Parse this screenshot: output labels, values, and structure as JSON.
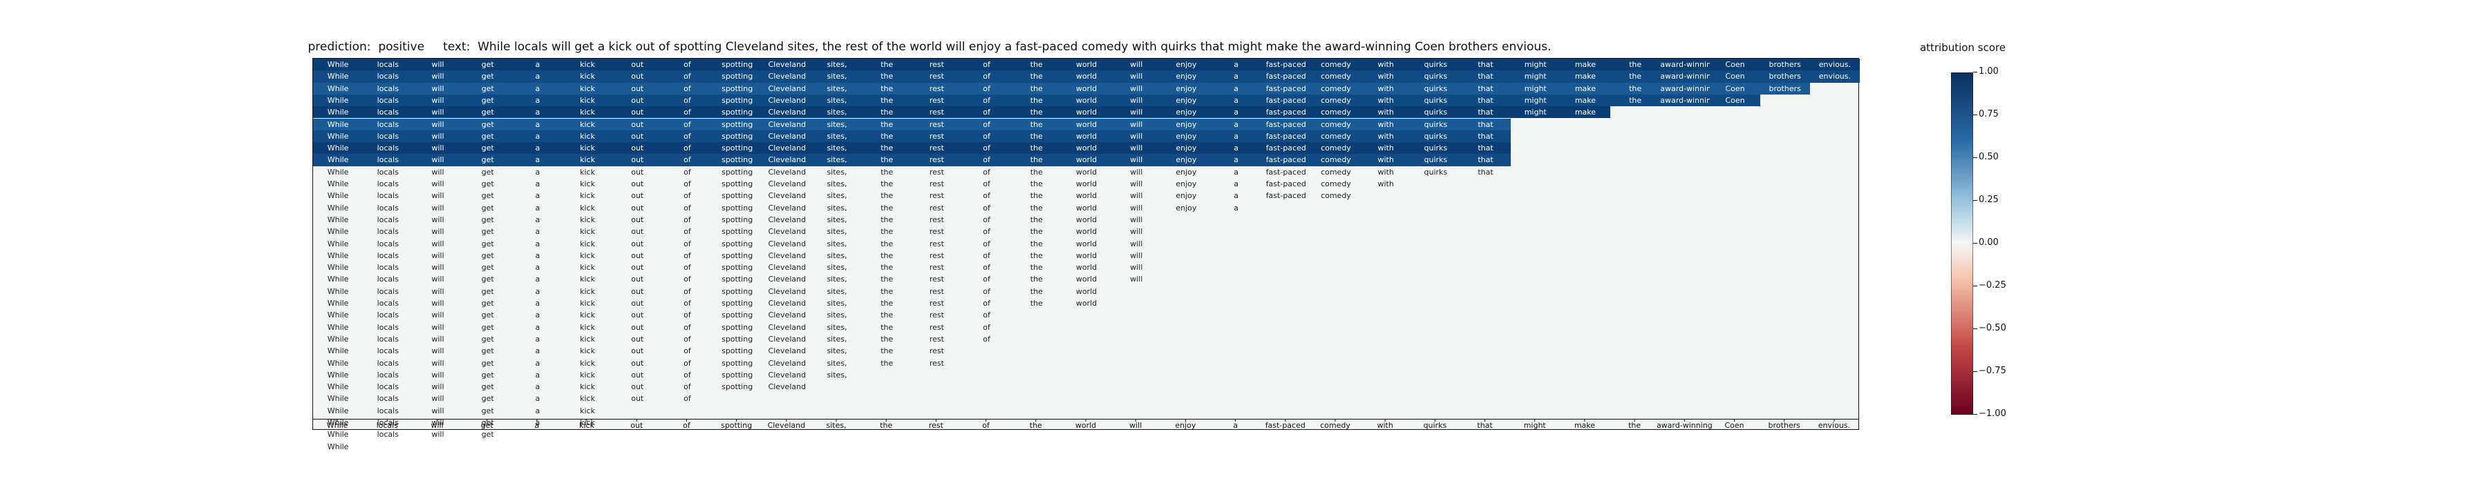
{
  "title": "prediction:  positive     text:  While locals will get a kick out of spotting Cleveland sites, the rest of the world will enjoy a fast-paced comedy with quirks that might make the award-winning Coen brothers envious.",
  "colorbar": {
    "label": "attribution score",
    "ticks": [
      "1.00",
      "0.75",
      "0.50",
      "0.25",
      "0.00",
      "−0.25",
      "−0.50",
      "−0.75",
      "−1.00"
    ],
    "range": [
      -1,
      1
    ]
  },
  "chart_data": {
    "type": "heatmap",
    "tokens": [
      "While",
      "locals",
      "will",
      "get",
      "a",
      "kick",
      "out",
      "of",
      "spotting",
      "Cleveland",
      "sites,",
      "the",
      "rest",
      "of",
      "the",
      "world",
      "will",
      "enjoy",
      "a",
      "fast-paced",
      "comedy",
      "with",
      "quirks",
      "that",
      "might",
      "make",
      "the",
      "award-winning",
      "Coen",
      "brothers",
      "envious."
    ],
    "row_lengths": [
      31,
      31,
      30,
      29,
      26,
      24,
      24,
      24,
      24,
      24,
      22,
      21,
      19,
      17,
      17,
      17,
      17,
      17,
      17,
      16,
      16,
      14,
      14,
      14,
      13,
      13,
      11,
      10,
      8,
      6,
      6,
      4,
      1
    ],
    "axis_label_tokens": [
      "While",
      "locals",
      "will",
      "get",
      "a",
      "kick",
      "out",
      "of",
      "spotting",
      "Cleveland",
      "sites,",
      "the",
      "rest",
      "of",
      "the",
      "world",
      "will",
      "enjoy",
      "a",
      "fast-paced",
      "comedy",
      "with",
      "quirks",
      "that",
      "might",
      "make",
      "the",
      "award-winning",
      "Coen",
      "brothers",
      "envious."
    ],
    "color_scale": "red-white-blue, -1 to 1",
    "strong_cells": [
      [
        0,
        0,
        1
      ],
      [
        0,
        1,
        1
      ],
      [
        0,
        2,
        1
      ],
      [
        0,
        3,
        1
      ],
      [
        0,
        4,
        1
      ],
      [
        0,
        5,
        1
      ],
      [
        0,
        6,
        1
      ],
      [
        0,
        7,
        1
      ],
      [
        0,
        8,
        1
      ],
      [
        0,
        9,
        1
      ],
      [
        0,
        10,
        1
      ],
      [
        0,
        11,
        1
      ],
      [
        0,
        12,
        1
      ],
      [
        0,
        13,
        1
      ],
      [
        0,
        14,
        1
      ],
      [
        0,
        15,
        1
      ],
      [
        0,
        16,
        1
      ],
      [
        0,
        17,
        1
      ],
      [
        0,
        18,
        1
      ],
      [
        0,
        19,
        1
      ],
      [
        0,
        20,
        1
      ],
      [
        0,
        21,
        1
      ],
      [
        0,
        22,
        1
      ],
      [
        0,
        23,
        1
      ],
      [
        0,
        24,
        1
      ],
      [
        0,
        25,
        1
      ],
      [
        0,
        26,
        1
      ],
      [
        0,
        27,
        1
      ],
      [
        0,
        28,
        1
      ],
      [
        0,
        29,
        1
      ],
      [
        0,
        30,
        1
      ]
    ]
  }
}
